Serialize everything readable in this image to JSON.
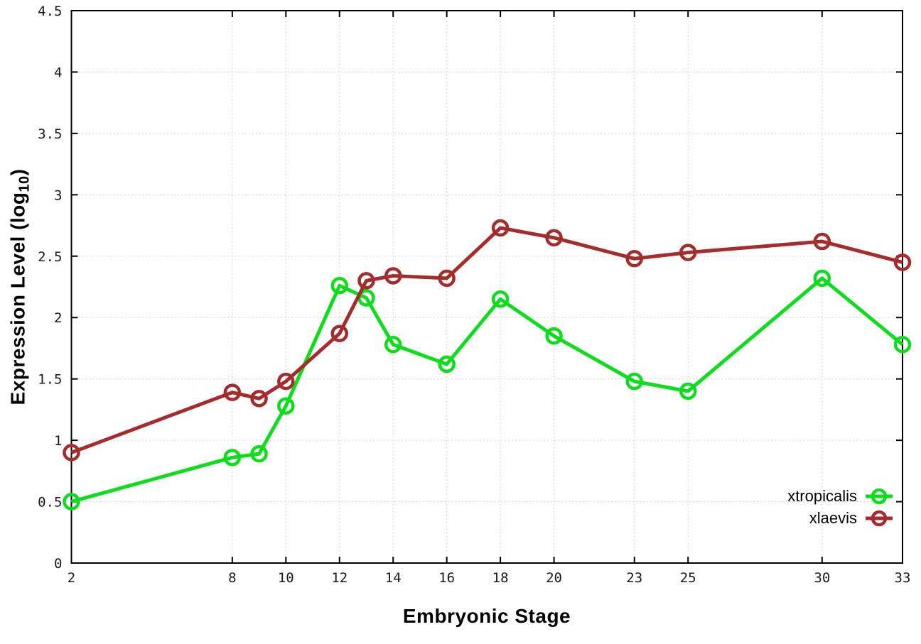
{
  "chart_data": {
    "type": "line",
    "title": "",
    "xlabel": "Embryonic Stage",
    "ylabel": "Expression Level (log10)",
    "ylabel_parts": {
      "prefix": "Expression Level (log",
      "sub": "10",
      "suffix": ")"
    },
    "xlim": [
      2,
      33
    ],
    "ylim": [
      0,
      4.5
    ],
    "grid": true,
    "grid_style": "dotted",
    "legend_position": "inside bottom-right",
    "x_tick_values": [
      2,
      8,
      10,
      12,
      14,
      16,
      18,
      20,
      23,
      25,
      30,
      33
    ],
    "x_tick_labels": [
      "2",
      "8",
      "10",
      "12",
      "14",
      "16",
      "18",
      "20",
      "23",
      "25",
      "30",
      "33"
    ],
    "y_tick_values": [
      0,
      0.5,
      1,
      1.5,
      2,
      2.5,
      3,
      3.5,
      4,
      4.5
    ],
    "y_tick_labels": [
      "0",
      "0.5",
      "1",
      "1.5",
      "2",
      "2.5",
      "3",
      "3.5",
      "4",
      "4.5"
    ],
    "x": [
      2,
      8,
      9,
      10,
      12,
      13,
      14,
      16,
      18,
      20,
      23,
      25,
      30,
      33
    ],
    "series": [
      {
        "name": "xtropicalis",
        "color": "#0edd1e",
        "marker": "open-circle",
        "values": [
          0.5,
          0.86,
          0.89,
          1.28,
          2.26,
          2.16,
          1.78,
          1.62,
          2.15,
          1.85,
          1.48,
          1.4,
          2.32,
          1.78
        ]
      },
      {
        "name": "xlaevis",
        "color": "#a42c2c",
        "marker": "open-circle",
        "values": [
          0.9,
          1.39,
          1.34,
          1.48,
          1.87,
          2.3,
          2.34,
          2.32,
          2.73,
          2.65,
          2.48,
          2.53,
          2.62,
          2.45
        ]
      }
    ],
    "colors": {
      "border": "#000000",
      "grid": "#c8c8c8",
      "tick_label": "#1a1a1a"
    }
  }
}
